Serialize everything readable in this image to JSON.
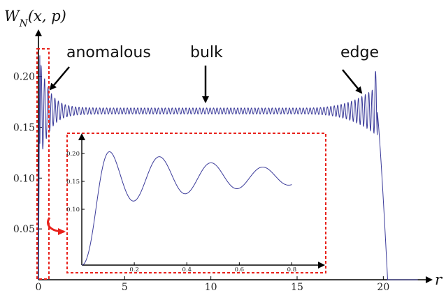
{
  "chart_data": [
    {
      "type": "line",
      "title": "",
      "ylabel": "W_N(x,p)",
      "xlabel": "r",
      "xlim": [
        0,
        22.5
      ],
      "ylim": [
        0,
        0.245
      ],
      "x_ticks": [
        "0",
        "5",
        "10",
        "15",
        "20"
      ],
      "y_ticks": [
        "0.05",
        "0.10",
        "0.15",
        "0.20"
      ],
      "x_tick_values": [
        0,
        5,
        10,
        15,
        20
      ],
      "y_tick_values": [
        0.05,
        0.1,
        0.15,
        0.2
      ],
      "grid": false,
      "series_color": "#3b3b9a",
      "annotations": [
        {
          "text": "anomalous",
          "x": 2.6,
          "y": 0.219
        },
        {
          "text": "bulk",
          "x": 9.3,
          "y": 0.219
        },
        {
          "text": "edge",
          "x": 16.6,
          "y": 0.219
        }
      ],
      "series": [
        {
          "description_points": [
            [
              0.0,
              0.0
            ],
            [
              0.05,
              0.22
            ],
            [
              0.3,
              0.115
            ],
            [
              0.45,
              0.195
            ],
            [
              0.6,
              0.13
            ],
            [
              1.0,
              0.175
            ],
            [
              2.0,
              0.17
            ],
            [
              5.0,
              0.167
            ],
            [
              10.0,
              0.167
            ],
            [
              15.0,
              0.168
            ],
            [
              17.0,
              0.172
            ],
            [
              18.5,
              0.178
            ],
            [
              19.0,
              0.165
            ],
            [
              19.5,
              0.205
            ],
            [
              20.0,
              0.06
            ],
            [
              20.3,
              0.0
            ]
          ]
        }
      ]
    },
    {
      "type": "line",
      "title": "",
      "xlim": [
        0,
        0.9
      ],
      "ylim": [
        0,
        0.23
      ],
      "x_ticks": [
        "0.2",
        "0.4",
        "0.6",
        "0.8"
      ],
      "y_ticks": [
        "0.10",
        "0.15",
        "0.20"
      ],
      "x_tick_values": [
        0.2,
        0.4,
        0.6,
        0.8
      ],
      "y_tick_values": [
        0.1,
        0.15,
        0.2
      ],
      "grid": false,
      "series_color": "#3b3b9a",
      "series": [
        {
          "description_points": [
            [
              0.0,
              0.0
            ],
            [
              0.1,
              0.22
            ],
            [
              0.17,
              0.115
            ],
            [
              0.24,
              0.2
            ],
            [
              0.3,
              0.13
            ],
            [
              0.37,
              0.19
            ],
            [
              0.43,
              0.135
            ],
            [
              0.5,
              0.185
            ],
            [
              0.56,
              0.137
            ],
            [
              0.63,
              0.182
            ],
            [
              0.69,
              0.14
            ],
            [
              0.8,
              0.17
            ]
          ]
        }
      ]
    }
  ],
  "labels": {
    "y_axis_title": "W",
    "y_axis_sub": "N",
    "y_axis_args": "(x, p)",
    "x_axis_title": "r",
    "anomalous": "anomalous",
    "bulk": "bulk",
    "edge": "edge"
  },
  "colors": {
    "curve": "#3b3b9a",
    "highlight": "#e8211b",
    "axis": "#000000"
  }
}
